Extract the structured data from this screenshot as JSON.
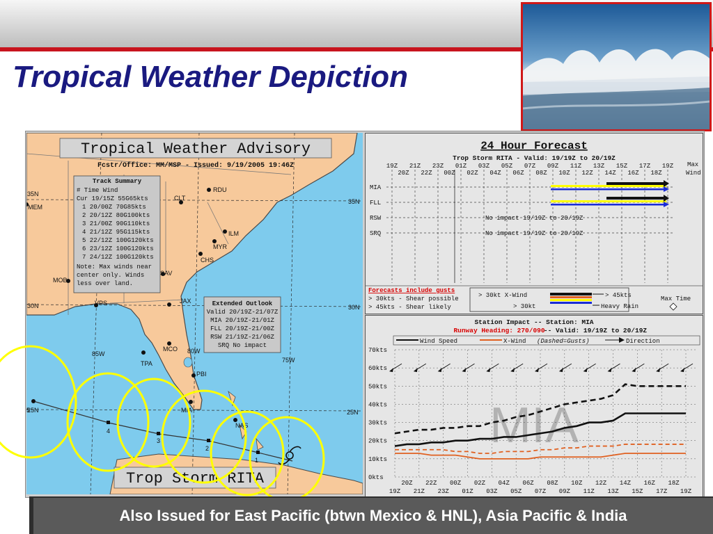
{
  "slide": {
    "title": "Tropical Weather Depiction",
    "footer": "Also Issued for East Pacific (btwn Mexico & HNL), Asia Pacific & India"
  },
  "colors": {
    "title": "#1a1a80",
    "accent_red": "#c8141e",
    "land": "#f7c99b",
    "water": "#7ecbed",
    "yellow": "#ffff00",
    "footer_bg": "#5a5a5a"
  },
  "map": {
    "title": "Tropical Weather Advisory",
    "office_line": "Fcstr/Office: MM/MSP - Issued: 9/19/2005 19:46Z",
    "track_summary": {
      "title": "Track Summary",
      "header": "#    Time      Wind",
      "rows": [
        "Cur 19/15Z 55G65kts",
        "1 20/00Z 70G85kts",
        "2 20/12Z 80G100kts",
        "3 21/00Z 90G110kts",
        "4 21/12Z 95G115kts",
        "5 22/12Z 100G120kts",
        "6 23/12Z 100G120kts",
        "7 24/12Z 100G120kts"
      ],
      "note": [
        "Note: Max winds near",
        "center only. Winds",
        "less over land."
      ]
    },
    "extended_outlook": {
      "title": "Extended Outlook",
      "lines": [
        "Valid 20/19Z-21/07Z",
        "MIA 20/19Z-21/01Z",
        "FLL 20/19Z-21/00Z",
        "RSW 21/19Z-21/06Z",
        "SRQ No impact"
      ]
    },
    "storm_label": "Trop Storm RITA",
    "cities": [
      "RDU",
      "CLT",
      "ILM",
      "MYR",
      "CHS",
      "SAV",
      "JAX",
      "MOB",
      "VPS",
      "TPA",
      "MCO",
      "PBI",
      "MIA",
      "NAS",
      "MEM"
    ],
    "lat_labels": [
      "35N",
      "35N",
      "30N",
      "30N",
      "25N",
      "25N"
    ],
    "lon_labels": [
      "85W",
      "80W",
      "75W"
    ],
    "track_points": [
      "1",
      "2",
      "3",
      "4",
      "5"
    ],
    "city_icons": [
      "city-dot-icon"
    ],
    "storm_icon": "hurricane-symbol-icon"
  },
  "forecast": {
    "title": "24 Hour Forecast",
    "subtitle": "Trop Storm RITA - Valid: 19/19Z to 20/19Z",
    "top_hours": [
      "19Z",
      "21Z",
      "23Z",
      "01Z",
      "03Z",
      "05Z",
      "07Z",
      "09Z",
      "11Z",
      "13Z",
      "15Z",
      "17Z",
      "19Z"
    ],
    "bottom_hours": [
      "20Z",
      "22Z",
      "00Z",
      "02Z",
      "04Z",
      "06Z",
      "08Z",
      "10Z",
      "12Z",
      "14Z",
      "16Z",
      "18Z"
    ],
    "max_wind_label": [
      "Max",
      "Wind"
    ],
    "stations": [
      "MIA",
      "FLL",
      "RSW",
      "SRQ"
    ],
    "no_impact": [
      "No impact 19/19Z to 20/19Z",
      "No impact 19/19Z to 20/19Z"
    ],
    "legend": {
      "gusts_title": "Forecasts include gusts",
      "gusts_lines": [
        "> 30kts - Shear possible",
        "> 45kts - Shear likely"
      ],
      "xwind": "> 30kt X-Wind",
      "k45": "> 45kts",
      "k30": "> 30kt",
      "rain": "Heavy Rain",
      "max_time": "Max Time"
    }
  },
  "station_impact": {
    "title": "Station Impact -- Station: MIA",
    "runway": "Runway Heading: 270/090",
    "valid": "-- Valid: 19/19Z to 20/19Z",
    "legend": {
      "wind": "Wind Speed",
      "xwind": "X-Wind",
      "dashed": "(Dashed=Gusts)",
      "dir": "Direction"
    },
    "watermark": "MIA",
    "y_labels": [
      "70kts",
      "60kts",
      "50kts",
      "40kts",
      "30kts",
      "20kts",
      "10kts",
      "0kts"
    ],
    "x_top": [
      "20Z",
      "22Z",
      "00Z",
      "02Z",
      "04Z",
      "06Z",
      "08Z",
      "10Z",
      "12Z",
      "14Z",
      "16Z",
      "18Z"
    ],
    "x_bottom": [
      "19Z",
      "21Z",
      "23Z",
      "01Z",
      "03Z",
      "05Z",
      "07Z",
      "09Z",
      "11Z",
      "13Z",
      "15Z",
      "17Z",
      "19Z"
    ]
  },
  "chart_data": {
    "type": "line",
    "ylim": [
      0,
      70
    ],
    "x_hours_from_19Z": [
      0,
      1,
      2,
      3,
      4,
      5,
      6,
      7,
      8,
      9,
      10,
      11,
      12,
      13,
      14,
      15,
      16,
      17,
      18,
      19,
      20,
      21,
      22,
      23,
      24
    ],
    "series": [
      {
        "name": "Wind Speed",
        "values": [
          17,
          18,
          18,
          19,
          19,
          20,
          20,
          21,
          21,
          22,
          22,
          23,
          24,
          25,
          27,
          28,
          30,
          30,
          31,
          35,
          35,
          35,
          35,
          35,
          35
        ]
      },
      {
        "name": "Wind Speed Gusts",
        "values": [
          24,
          25,
          26,
          26,
          27,
          27,
          28,
          28,
          30,
          31,
          33,
          34,
          36,
          38,
          40,
          41,
          42,
          43,
          45,
          51,
          50,
          50,
          50,
          50,
          50
        ]
      },
      {
        "name": "X-Wind",
        "values": [
          13,
          13,
          13,
          12,
          12,
          12,
          11,
          10,
          10,
          10,
          10,
          10,
          11,
          11,
          11,
          11,
          11,
          11,
          12,
          13,
          13,
          13,
          13,
          13,
          13
        ]
      },
      {
        "name": "X-Wind Gusts",
        "values": [
          15,
          15,
          15,
          15,
          15,
          14,
          14,
          13,
          13,
          14,
          14,
          14,
          15,
          15,
          16,
          16,
          17,
          17,
          17,
          18,
          18,
          18,
          18,
          18,
          18
        ]
      }
    ]
  }
}
